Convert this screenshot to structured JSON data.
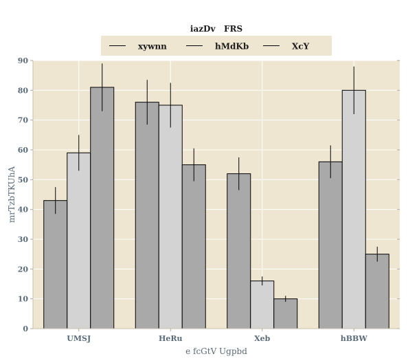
{
  "chart_data": {
    "type": "bar",
    "title": "iazDv   FRS",
    "xlabel": "e fcGtV Ugpbd",
    "ylabel": "mrTzbTKUhA",
    "categories": [
      "UMSJ",
      "HeRu",
      "Xeb",
      "hBBW"
    ],
    "series": [
      {
        "name": "xywnn",
        "values": [
          43,
          76,
          52,
          56
        ],
        "errors": [
          4.5,
          7.5,
          5.5,
          5.5
        ],
        "color": "#a9a9a9"
      },
      {
        "name": "hMdKb",
        "values": [
          59,
          75,
          16,
          80
        ],
        "errors": [
          6,
          7.5,
          1.5,
          8
        ],
        "color": "#d3d3d3"
      },
      {
        "name": "XcY",
        "values": [
          81,
          55,
          10,
          25
        ],
        "errors": [
          8,
          5.5,
          1,
          2.5
        ],
        "color": "#a9a9a9"
      }
    ],
    "ylim": [
      0,
      90
    ],
    "yticks": [
      0,
      10,
      20,
      30,
      40,
      50,
      60,
      70,
      80,
      90
    ],
    "grid": true,
    "legend_position": "top-center",
    "plot_background": "#efe6d2",
    "grid_color": "#ffffff"
  }
}
